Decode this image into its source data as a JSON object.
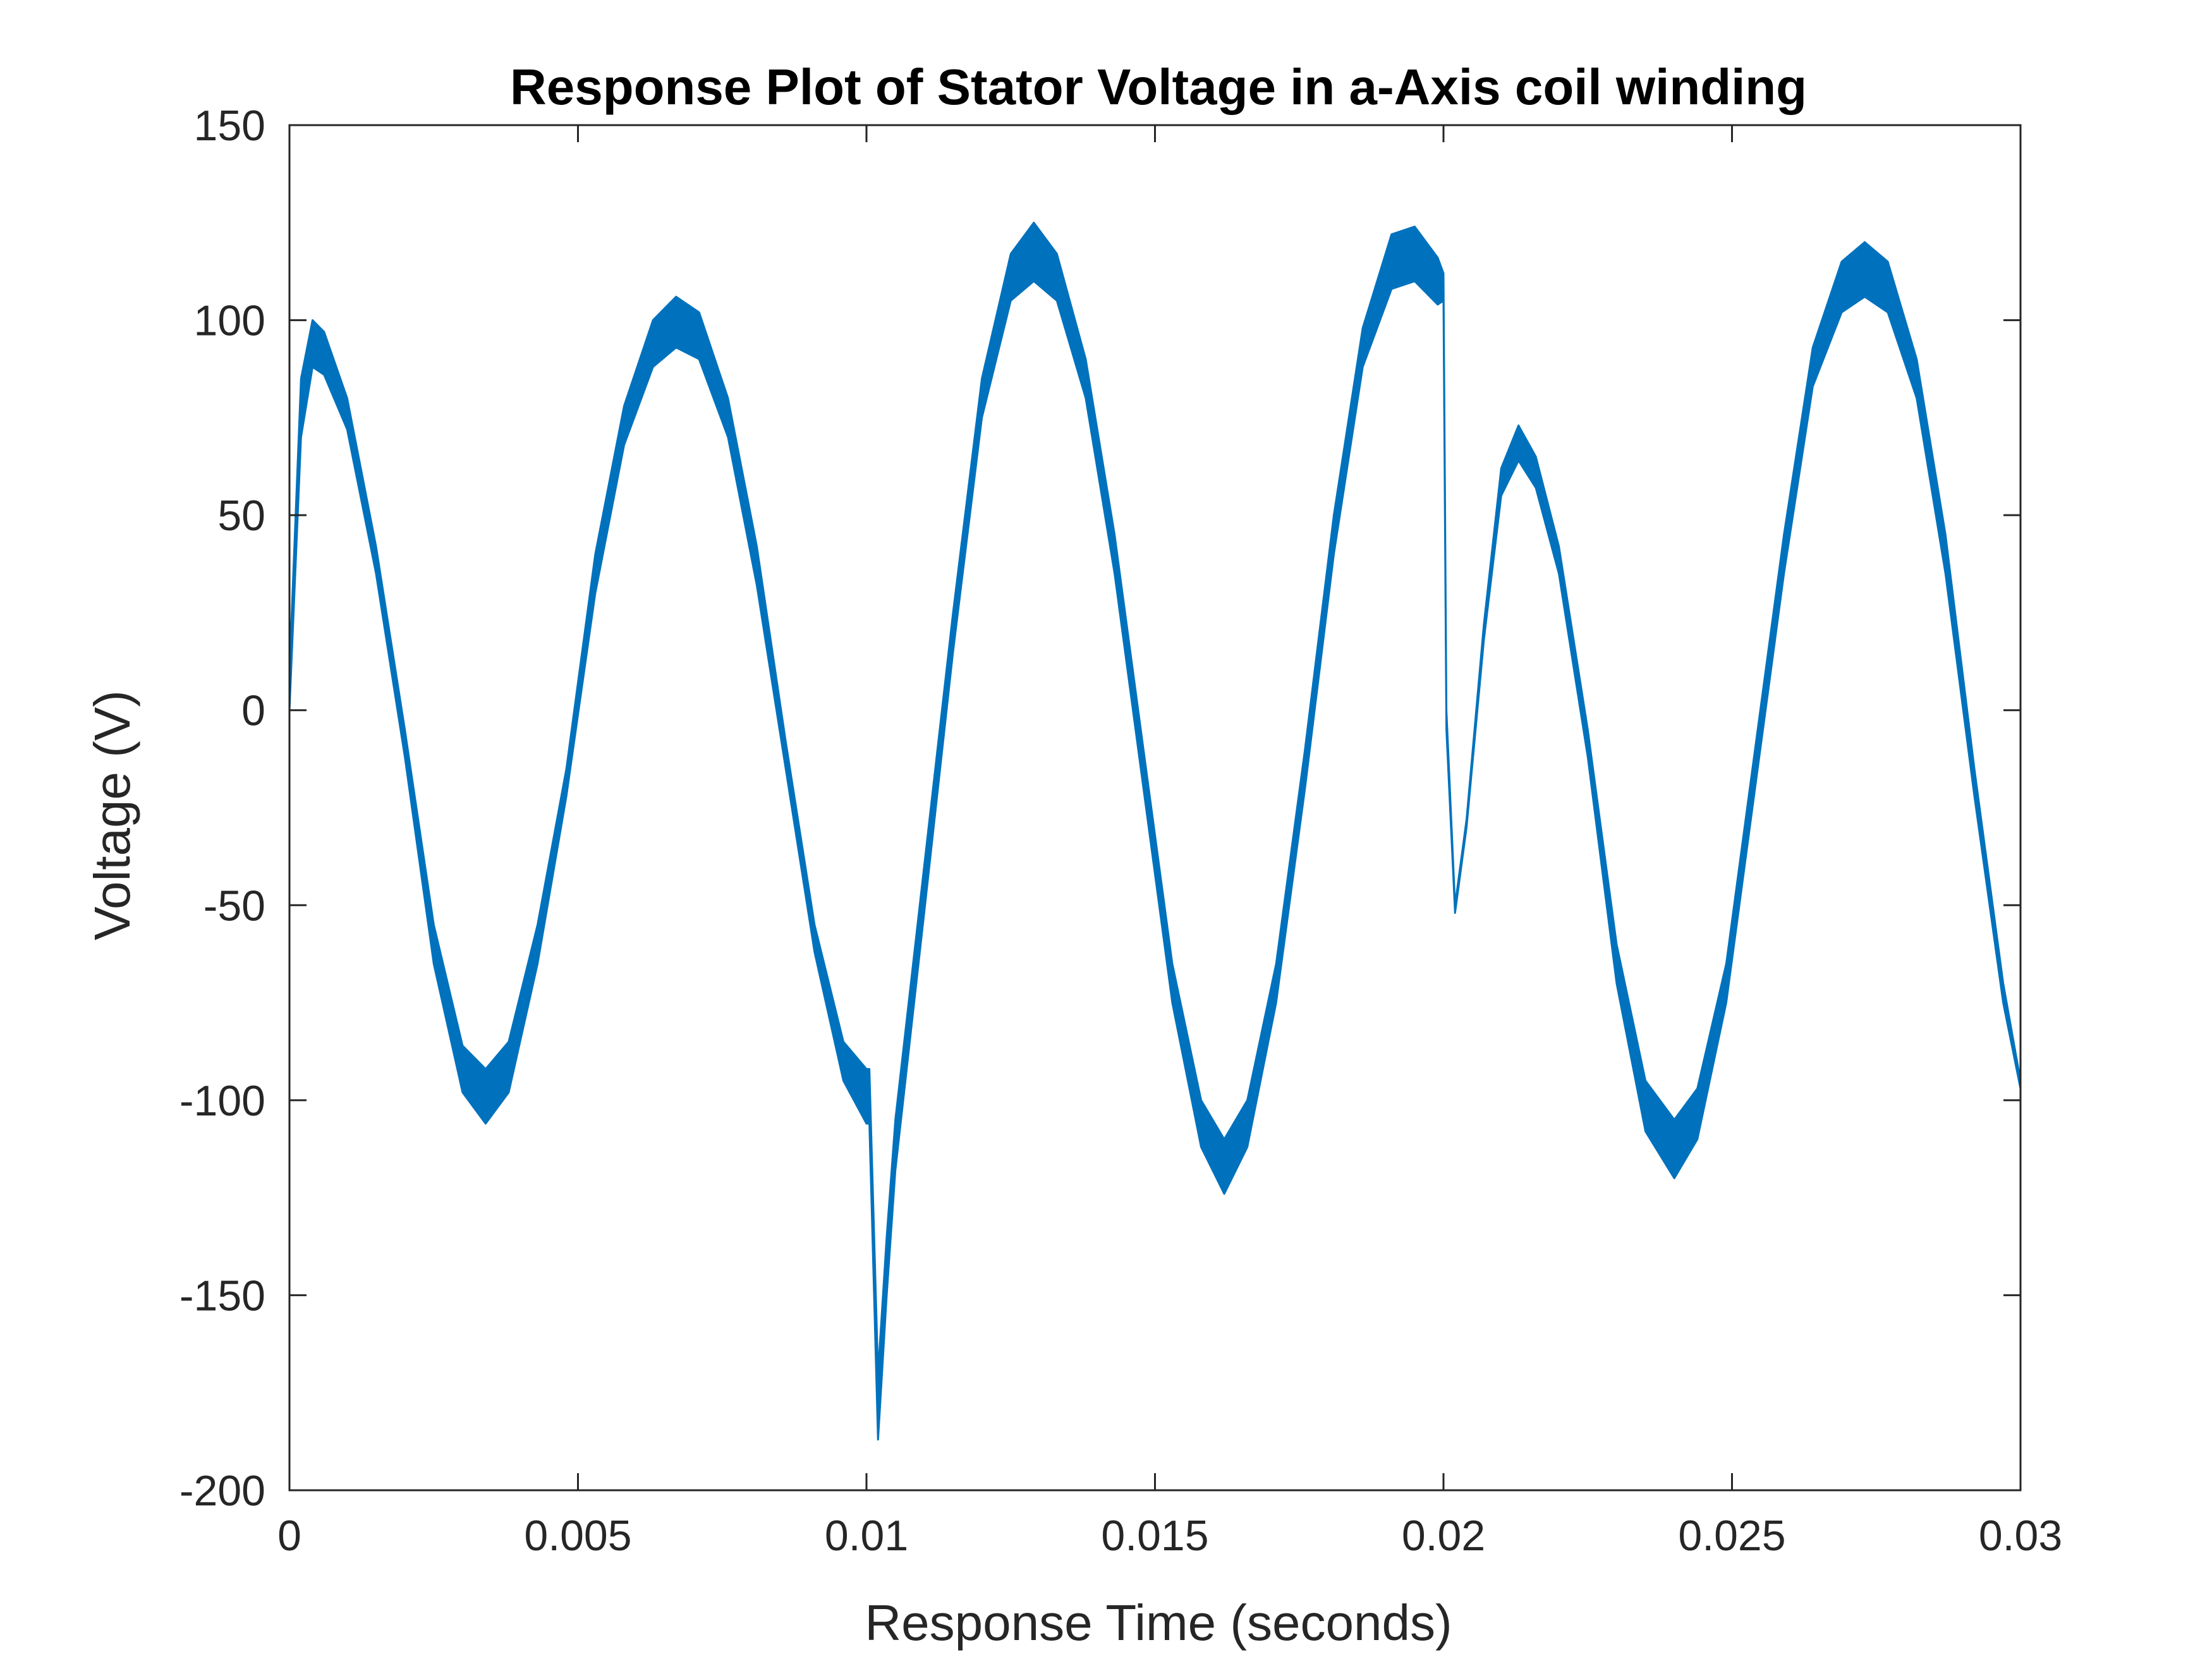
{
  "chart_data": {
    "type": "line",
    "title": "Response Plot of Stator Voltage in a-Axis coil winding",
    "xlabel": "Response Time (seconds)",
    "ylabel": "Voltage (V)",
    "xlim": [
      0,
      0.03
    ],
    "ylim": [
      -200,
      150
    ],
    "xticks": [
      0,
      0.005,
      0.01,
      0.015,
      0.02,
      0.025,
      0.03
    ],
    "xtick_labels": [
      "0",
      "0.005",
      "0.01",
      "0.015",
      "0.02",
      "0.025",
      "0.03"
    ],
    "yticks": [
      -200,
      -150,
      -100,
      -50,
      0,
      50,
      100,
      150
    ],
    "ytick_labels": [
      "-200",
      "-150",
      "-100",
      "-50",
      "0",
      "50",
      "100",
      "150"
    ],
    "grid": false,
    "box": true,
    "line_color": "#0072BD",
    "series": [
      {
        "upper": {
          "x": [
            0,
            0.0002,
            0.0004,
            0.0006,
            0.001,
            0.0015,
            0.002,
            0.0025,
            0.003,
            0.0034,
            0.0038,
            0.0043,
            0.0048,
            0.0053,
            0.0058,
            0.0063,
            0.0067,
            0.0071,
            0.0076,
            0.0081,
            0.0086,
            0.0091,
            0.0096,
            0.01,
            0.01005,
            0.0102,
            0.01035,
            0.0105,
            0.011,
            0.0115,
            0.012,
            0.0125,
            0.0129,
            0.0133,
            0.0138,
            0.0143,
            0.0148,
            0.0153,
            0.0158,
            0.0162,
            0.0166,
            0.0171,
            0.0176,
            0.0181,
            0.0186,
            0.0191,
            0.0195,
            0.0199,
            0.02,
            0.02005,
            0.0202,
            0.0204,
            0.0207,
            0.021,
            0.0213,
            0.0216,
            0.022,
            0.0225,
            0.023,
            0.0235,
            0.024,
            0.0244,
            0.0249,
            0.0254,
            0.0259,
            0.0264,
            0.0269,
            0.0273,
            0.0277,
            0.0282,
            0.0287,
            0.0292,
            0.0297,
            0.03
          ],
          "y": [
            10,
            85,
            100,
            97,
            80,
            42,
            -5,
            -55,
            -86,
            -92,
            -85,
            -55,
            -15,
            40,
            78,
            100,
            106,
            102,
            80,
            42,
            -8,
            -55,
            -85,
            -92,
            -92,
            -170,
            -135,
            -105,
            -40,
            25,
            85,
            117,
            125,
            117,
            90,
            45,
            -10,
            -65,
            -100,
            -110,
            -100,
            -65,
            -10,
            50,
            98,
            122,
            124,
            116,
            112,
            0,
            -50,
            -28,
            22,
            62,
            73,
            65,
            42,
            -5,
            -60,
            -95,
            -105,
            -97,
            -65,
            -10,
            45,
            93,
            115,
            120,
            115,
            90,
            45,
            -15,
            -70,
            -95
          ]
        },
        "lower": {
          "x": [
            0,
            0.0002,
            0.0004,
            0.0006,
            0.001,
            0.0015,
            0.002,
            0.0025,
            0.003,
            0.0034,
            0.0038,
            0.0043,
            0.0048,
            0.0053,
            0.0058,
            0.0063,
            0.0067,
            0.0071,
            0.0076,
            0.0081,
            0.0086,
            0.0091,
            0.0096,
            0.01,
            0.01005,
            0.0102,
            0.01035,
            0.0105,
            0.011,
            0.0115,
            0.012,
            0.0125,
            0.0129,
            0.0133,
            0.0138,
            0.0143,
            0.0148,
            0.0153,
            0.0158,
            0.0162,
            0.0166,
            0.0171,
            0.0176,
            0.0181,
            0.0186,
            0.0191,
            0.0195,
            0.0199,
            0.02,
            0.02005,
            0.0202,
            0.0204,
            0.0207,
            0.021,
            0.0213,
            0.0216,
            0.022,
            0.0225,
            0.023,
            0.0235,
            0.024,
            0.0244,
            0.0249,
            0.0254,
            0.0259,
            0.0264,
            0.0269,
            0.0273,
            0.0277,
            0.0282,
            0.0287,
            0.0292,
            0.0297,
            0.03
          ],
          "y": [
            0,
            70,
            88,
            86,
            72,
            35,
            -12,
            -65,
            -98,
            -106,
            -98,
            -65,
            -22,
            30,
            68,
            88,
            93,
            90,
            70,
            32,
            -15,
            -62,
            -95,
            -106,
            -106,
            -187,
            -150,
            -118,
            -52,
            15,
            75,
            105,
            110,
            105,
            80,
            35,
            -20,
            -75,
            -112,
            -124,
            -112,
            -75,
            -20,
            40,
            88,
            108,
            110,
            104,
            105,
            -5,
            -52,
            -30,
            18,
            55,
            64,
            57,
            35,
            -12,
            -70,
            -108,
            -120,
            -110,
            -75,
            -20,
            35,
            83,
            102,
            106,
            102,
            80,
            35,
            -22,
            -75,
            -97
          ]
        }
      }
    ]
  }
}
